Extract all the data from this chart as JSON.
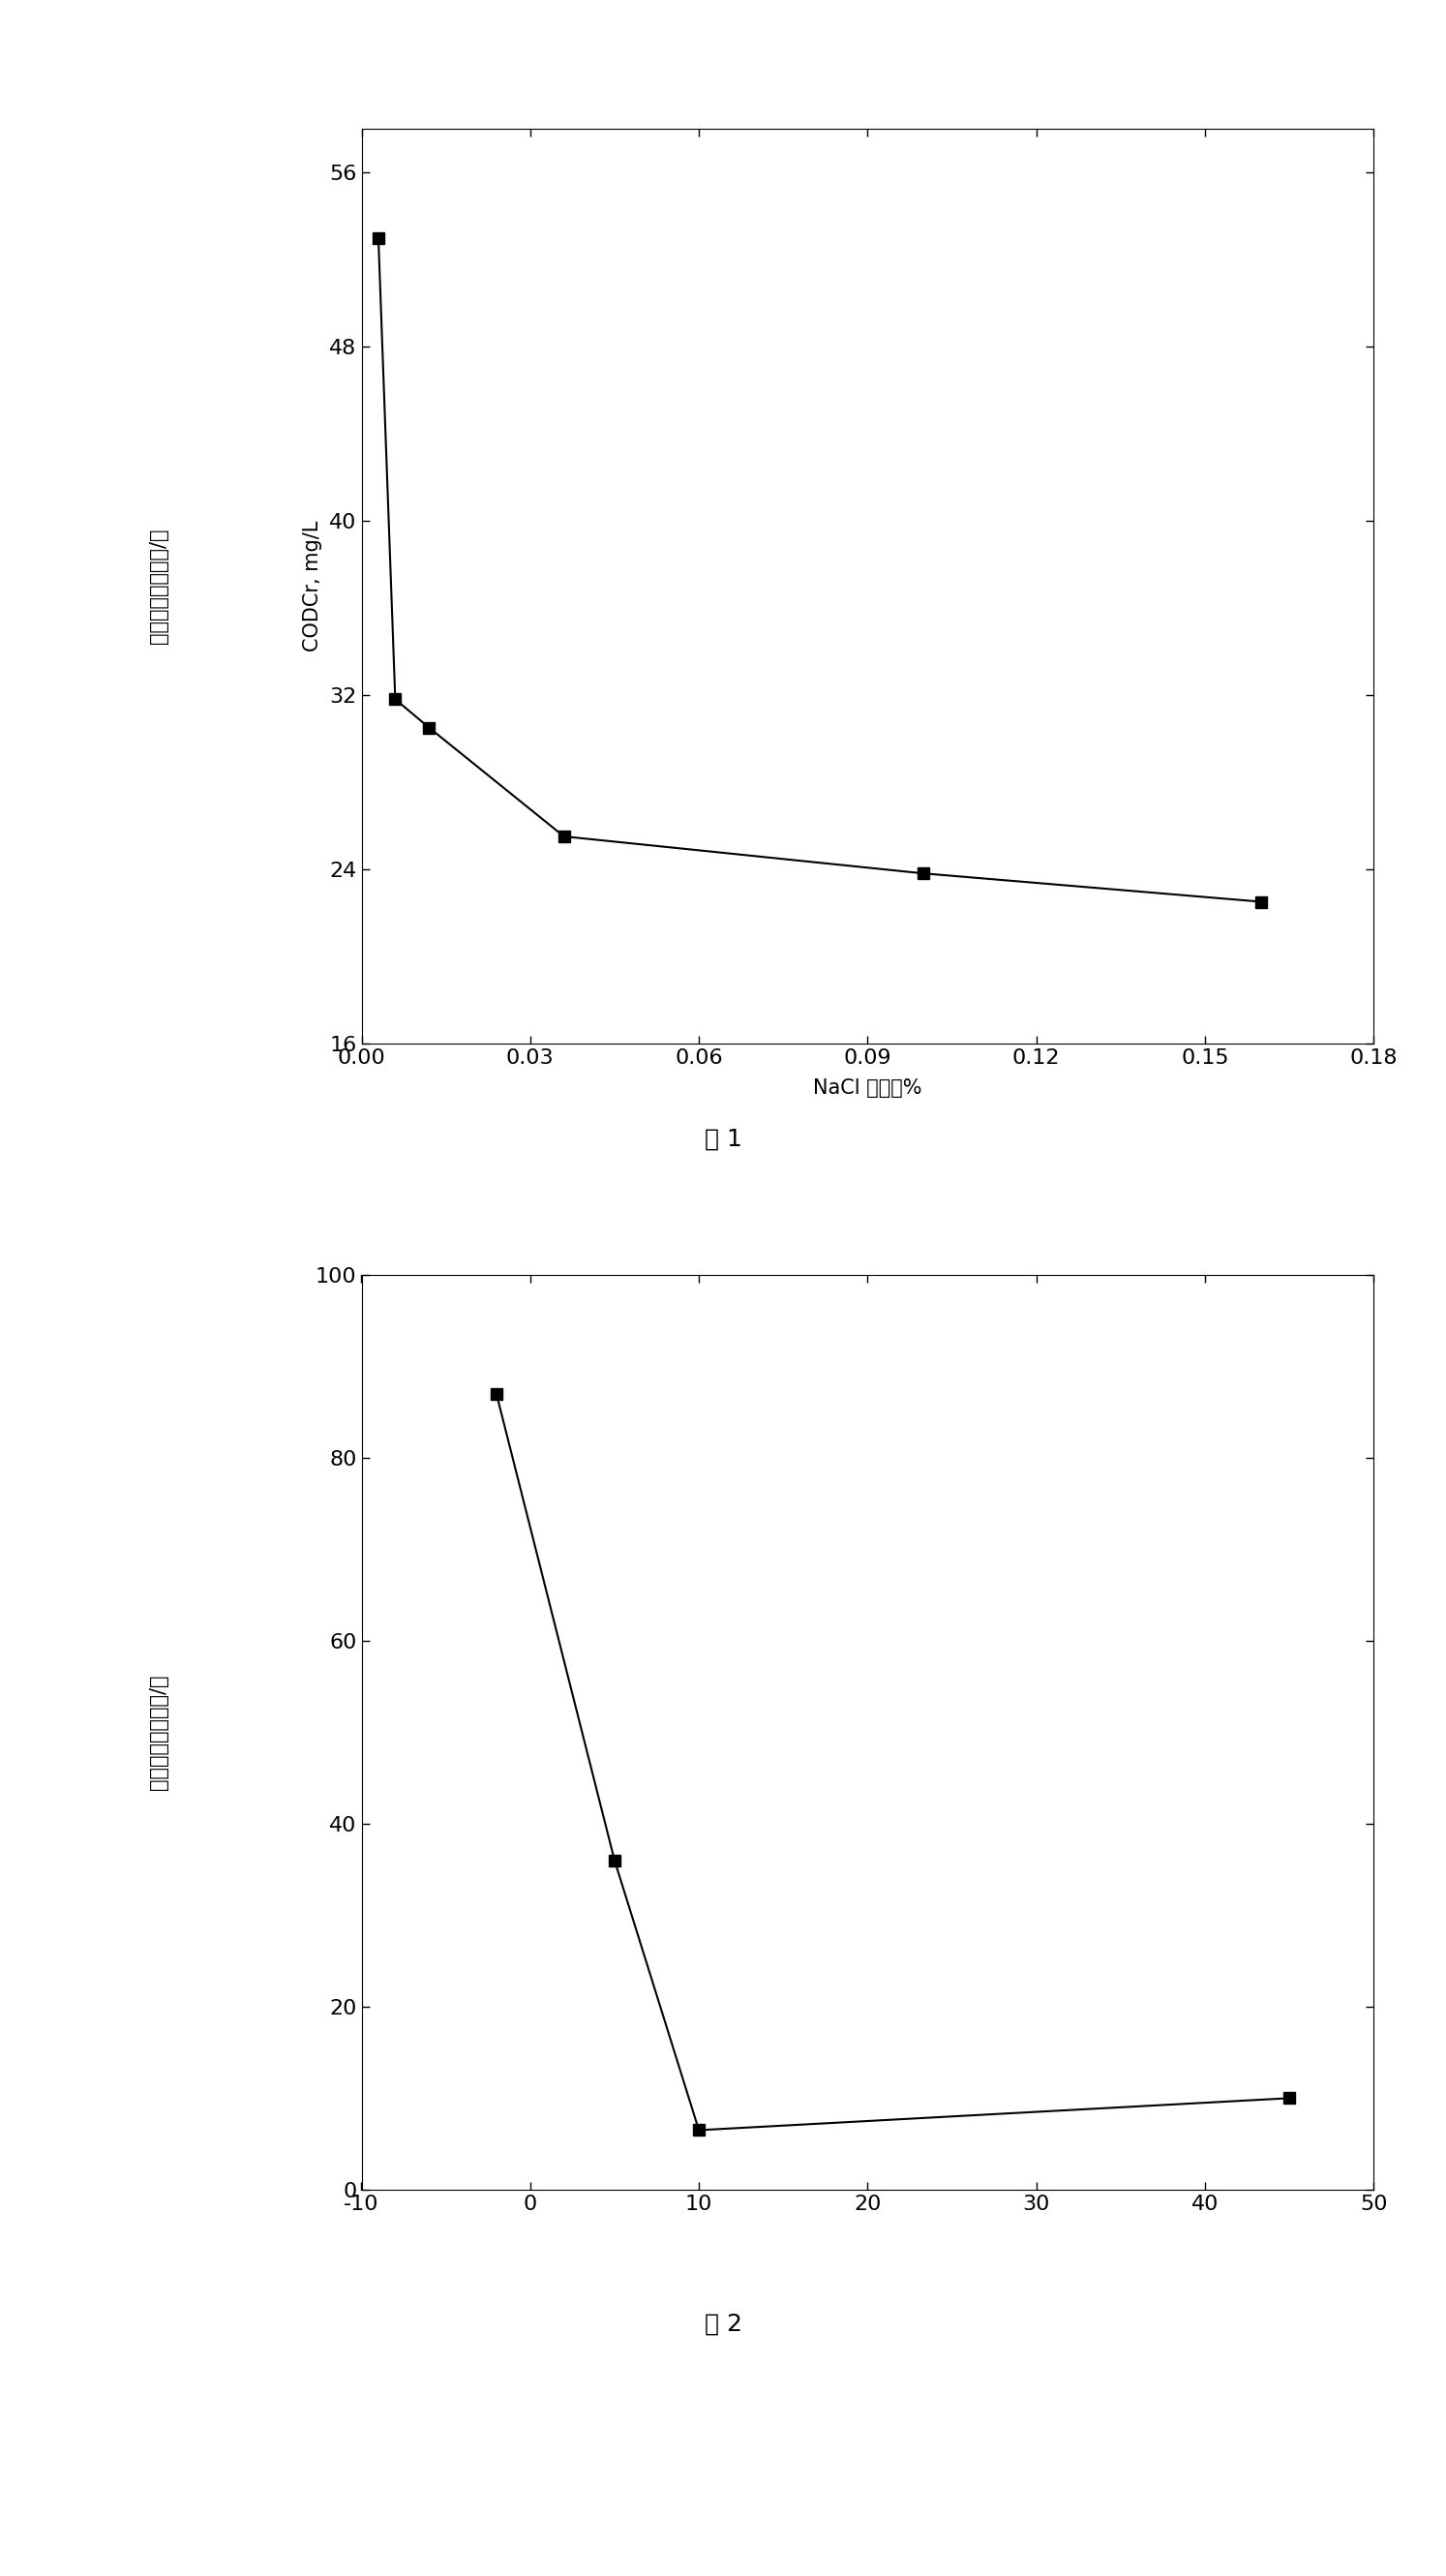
{
  "chart1": {
    "x": [
      0.003,
      0.006,
      0.012,
      0.036,
      0.1,
      0.16
    ],
    "y": [
      53.0,
      31.8,
      30.5,
      25.5,
      23.8,
      22.5
    ],
    "xlim": [
      0.0,
      0.18
    ],
    "ylim": [
      16,
      58
    ],
    "xticks": [
      0.0,
      0.03,
      0.06,
      0.09,
      0.12,
      0.15,
      0.18
    ],
    "yticks": [
      16,
      24,
      32,
      40,
      48,
      56
    ],
    "xtick_labels": [
      "0.00",
      "0.03",
      "0.06",
      "0.09",
      "0.12",
      "0.15",
      "0.18"
    ],
    "ytick_labels": [
      "16",
      "24",
      "32",
      "40",
      "48",
      "56"
    ],
    "xlabel": "NaCl 浓度，%",
    "ylabel_cn": "化学需氧量，毫克/升",
    "ylabel_en": "CODCr, mg/L",
    "caption": "图 1"
  },
  "chart2": {
    "x": [
      -2,
      5,
      10,
      45
    ],
    "y": [
      87,
      36,
      6.5,
      10
    ],
    "xlim": [
      -5,
      50
    ],
    "ylim": [
      0,
      100
    ],
    "xticks": [
      -10,
      0,
      10,
      20,
      30,
      40,
      50
    ],
    "yticks": [
      0,
      20,
      40,
      60,
      80,
      100
    ],
    "xtick_labels": [
      "-10",
      "0",
      "10",
      "20",
      "30",
      "40",
      "50"
    ],
    "ytick_labels": [
      "0",
      "20",
      "40",
      "60",
      "80",
      "100"
    ],
    "xlabel": "",
    "ylabel_cn": "化学需氧量，毫克/升",
    "caption": "图 2"
  },
  "bg_color": "#ffffff",
  "marker_color": "#000000",
  "line_color": "#000000",
  "marker": "s",
  "marker_size": 8,
  "linewidth": 1.5,
  "tick_fontsize": 16,
  "label_fontsize": 15,
  "caption_fontsize": 18
}
